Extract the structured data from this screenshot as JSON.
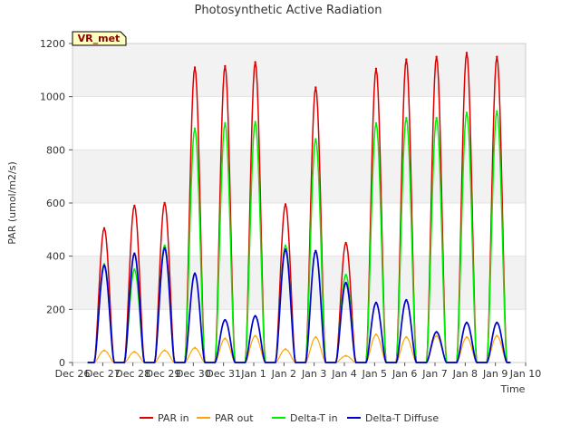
{
  "chart_data": {
    "type": "line",
    "title": "Photosynthetic Active Radiation",
    "xlabel": "Time",
    "ylabel": "PAR (umol/m2/s)",
    "ylim": [
      0,
      1200
    ],
    "yticks": [
      0,
      200,
      400,
      600,
      800,
      1000,
      1200
    ],
    "xlim": [
      0,
      15
    ],
    "xtick_labels": [
      "Dec 26",
      "Dec 27",
      "Dec 28",
      "Dec 29",
      "Dec 30",
      "Dec 31",
      "Jan 1",
      "Jan 2",
      "Jan 3",
      "Jan 4",
      "Jan 5",
      "Jan 6",
      "Jan 7",
      "Jan 8",
      "Jan 9",
      "Jan 10"
    ],
    "site_badge": "VR_met",
    "legend_position": "bottom",
    "grid": "horizontal bands",
    "daily_peaks": {
      "day_offsets": [
        1,
        2,
        3,
        4,
        5,
        6,
        7,
        8,
        9,
        10,
        11,
        12,
        13,
        14
      ],
      "series": [
        {
          "name": "PAR in",
          "color": "#dd0000",
          "values": [
            505,
            590,
            600,
            1110,
            1115,
            1130,
            595,
            1035,
            450,
            1105,
            1140,
            1150,
            1165,
            1150
          ]
        },
        {
          "name": "PAR out",
          "color": "#ffa500",
          "values": [
            45,
            40,
            45,
            55,
            90,
            100,
            50,
            95,
            25,
            105,
            95,
            100,
            95,
            100
          ]
        },
        {
          "name": "Delta-T in",
          "color": "#00ee00",
          "values": [
            370,
            350,
            440,
            880,
            900,
            905,
            440,
            840,
            330,
            900,
            920,
            920,
            940,
            945
          ]
        },
        {
          "name": "Delta-T Diffuse",
          "color": "#0000cc",
          "values": [
            365,
            410,
            430,
            335,
            160,
            175,
            425,
            420,
            300,
            225,
            235,
            115,
            150,
            150
          ]
        }
      ]
    }
  }
}
